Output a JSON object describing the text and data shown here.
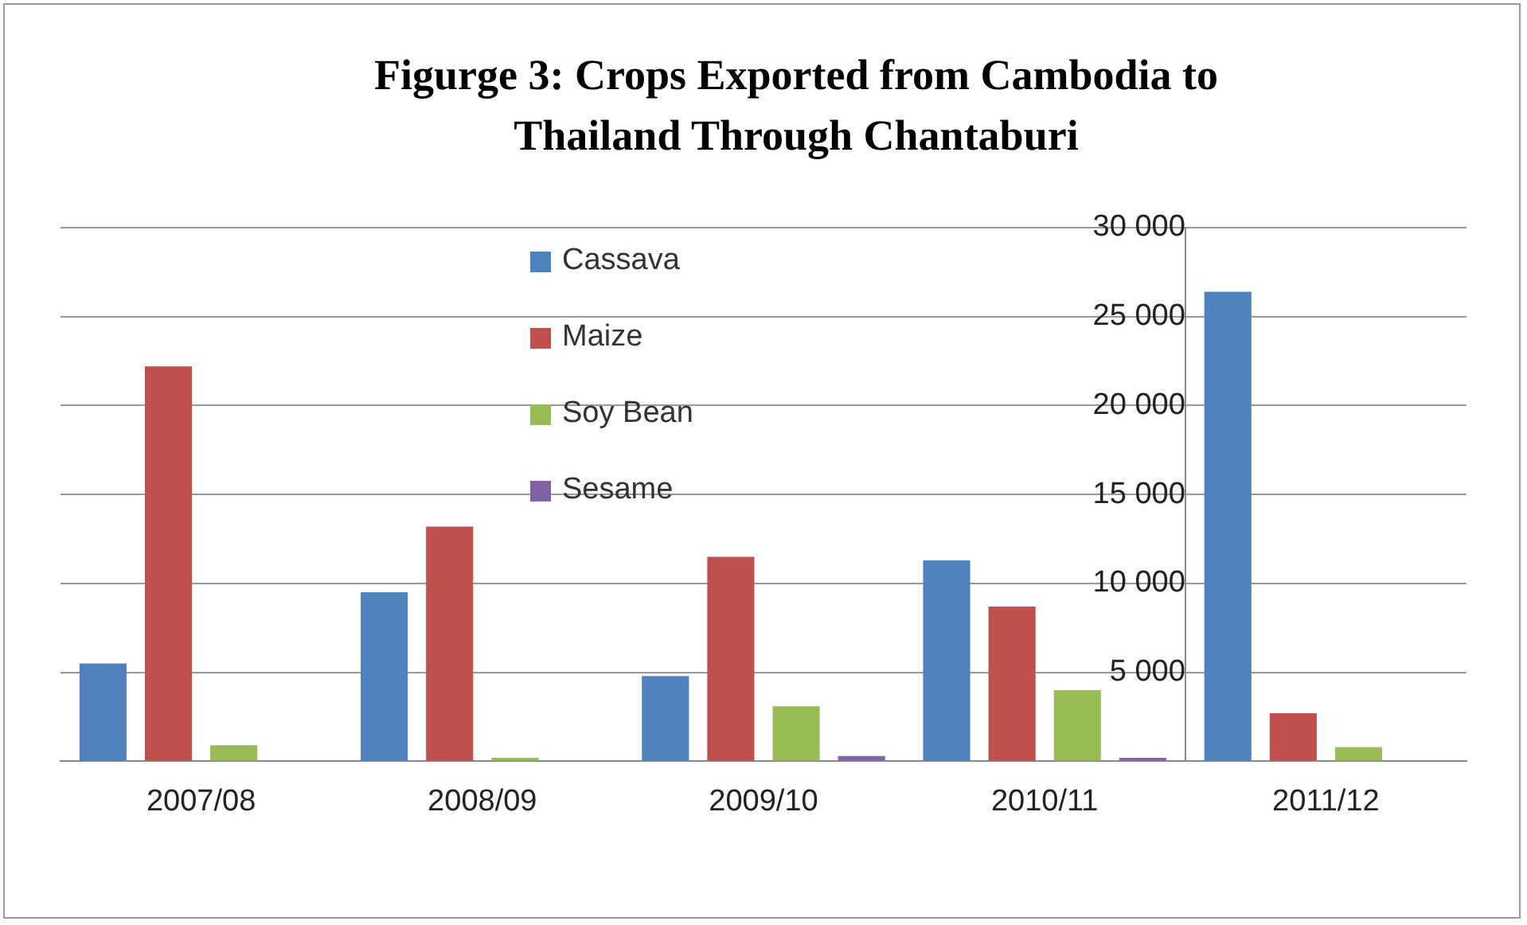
{
  "chart_data": {
    "type": "bar",
    "title": "Figurge 3: Crops Exported from Cambodia to Thailand Through Chantaburi",
    "categories": [
      "2007/08",
      "2008/09",
      "2009/10",
      "2010/11",
      "2011/12"
    ],
    "series": [
      {
        "name": "Cassava",
        "color": "#4f81bd",
        "values": [
          5500,
          9500,
          4800,
          11300,
          26400
        ]
      },
      {
        "name": "Maize",
        "color": "#c0504d",
        "values": [
          22200,
          13200,
          11500,
          8700,
          2700
        ]
      },
      {
        "name": "Soy Bean",
        "color": "#9bbb59",
        "values": [
          900,
          200,
          3100,
          4000,
          800
        ]
      },
      {
        "name": "Sesame",
        "color": "#8064a2",
        "values": [
          null,
          null,
          300,
          200,
          null
        ]
      }
    ],
    "ylim": [
      0,
      30000
    ],
    "yticks": [
      {
        "value": 0,
        "label": null
      },
      {
        "value": 5000,
        "label": "5 000"
      },
      {
        "value": 10000,
        "label": "10 000"
      },
      {
        "value": 15000,
        "label": "15 000"
      },
      {
        "value": 20000,
        "label": "20 000"
      },
      {
        "value": 25000,
        "label": "25 000"
      },
      {
        "value": 30000,
        "label": "30 000"
      }
    ],
    "grid": "y",
    "legend": "top"
  }
}
